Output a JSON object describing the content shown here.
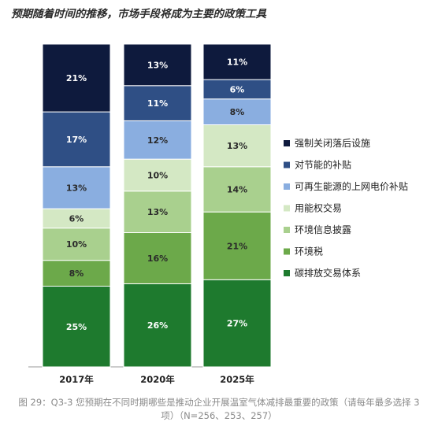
{
  "header": {
    "title": "预期随着时间的推移，市场手段将成为主要的政策工具"
  },
  "caption": "图 29：Q3-3 您预期在不同时期哪些是推动企业开展温室气体减排最重要的政策（请每年最多选择 3 项）（N=256、253、257）",
  "chart_data": {
    "type": "bar",
    "stacked": true,
    "percent": true,
    "categories": [
      "2017年",
      "2020年",
      "2025年"
    ],
    "legend_position": "right",
    "grid": false,
    "series": [
      {
        "name": "碳排放交易体系",
        "values": [
          25,
          26,
          27
        ],
        "color": "#1e7a2e",
        "label_color": "#ffffff"
      },
      {
        "name": "环境税",
        "values": [
          8,
          16,
          21
        ],
        "color": "#6ca94a",
        "label_color": "#2a2a2a"
      },
      {
        "name": "环境信息披露",
        "values": [
          10,
          13,
          14
        ],
        "color": "#a9d08e",
        "label_color": "#2a2a2a"
      },
      {
        "name": "用能权交易",
        "values": [
          6,
          10,
          13
        ],
        "color": "#d4e8c4",
        "label_color": "#2a2a2a"
      },
      {
        "name": "可再生能源的上网电价补贴",
        "values": [
          13,
          12,
          8
        ],
        "color": "#8aaee0",
        "label_color": "#2a2a2a"
      },
      {
        "name": "对节能的补贴",
        "values": [
          17,
          11,
          6
        ],
        "color": "#2f4f85",
        "label_color": "#ffffff"
      },
      {
        "name": "强制关闭落后设施",
        "values": [
          21,
          13,
          11
        ],
        "color": "#0e1a3d",
        "label_color": "#ffffff"
      }
    ]
  }
}
